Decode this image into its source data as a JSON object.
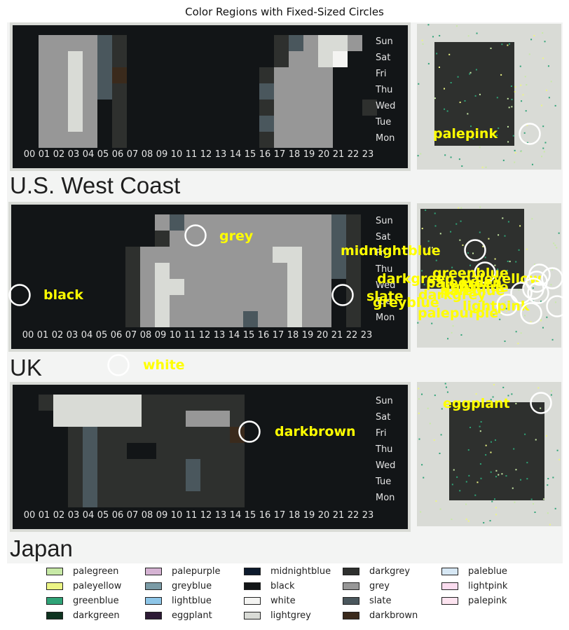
{
  "chart_data": {
    "type": "heatmap",
    "title": "Color Regions with Fixed-Sized Circles",
    "panels": [
      {
        "name": "U.S. West Coast",
        "hours": [
          "00",
          "01",
          "02",
          "03",
          "04",
          "05",
          "06",
          "07",
          "08",
          "09",
          "10",
          "11",
          "12",
          "13",
          "14",
          "15",
          "16",
          "17",
          "18",
          "19",
          "20",
          "21",
          "22",
          "23"
        ],
        "days": [
          "Sun",
          "Sat",
          "Fri",
          "Thu",
          "Wed",
          "Tue",
          "Mon"
        ]
      },
      {
        "name": "UK",
        "hours": [
          "00",
          "01",
          "02",
          "03",
          "04",
          "05",
          "06",
          "07",
          "08",
          "09",
          "10",
          "11",
          "12",
          "13",
          "14",
          "15",
          "16",
          "17",
          "18",
          "19",
          "20",
          "21",
          "22",
          "23"
        ],
        "days": [
          "Sun",
          "Sat",
          "Fri",
          "Thu",
          "Wed",
          "Tue",
          "Mon"
        ]
      },
      {
        "name": "Japan",
        "hours": [
          "00",
          "01",
          "02",
          "03",
          "04",
          "05",
          "06",
          "07",
          "08",
          "09",
          "10",
          "11",
          "12",
          "13",
          "14",
          "15",
          "16",
          "17",
          "18",
          "19",
          "20",
          "21",
          "22",
          "23"
        ],
        "days": [
          "Sun",
          "Sat",
          "Fri",
          "Thu",
          "Wed",
          "Tue",
          "Mon"
        ]
      }
    ],
    "annotations": [
      {
        "label": "palepink"
      },
      {
        "label": "grey"
      },
      {
        "label": "midnightblue"
      },
      {
        "label": "black"
      },
      {
        "label": "greenblue"
      },
      {
        "label": "darkgreen"
      },
      {
        "label": "paleyellow"
      },
      {
        "label": "palegreen"
      },
      {
        "label": "darkgrey"
      },
      {
        "label": "slate"
      },
      {
        "label": "paleblue"
      },
      {
        "label": "lightblue"
      },
      {
        "label": "greyblue"
      },
      {
        "label": "lightpink"
      },
      {
        "label": "palepurple"
      },
      {
        "label": "white"
      },
      {
        "label": "eggplant"
      },
      {
        "label": "darkbrown"
      }
    ],
    "legend": [
      {
        "name": "palegreen",
        "color": "#c7e9a6"
      },
      {
        "name": "paleyellow",
        "color": "#ecf585"
      },
      {
        "name": "greenblue",
        "color": "#2fa377"
      },
      {
        "name": "darkgreen",
        "color": "#0e3320"
      },
      {
        "name": "palepurple",
        "color": "#d5b3d3"
      },
      {
        "name": "greyblue",
        "color": "#7a9ba6"
      },
      {
        "name": "lightblue",
        "color": "#8ec6e8"
      },
      {
        "name": "eggplant",
        "color": "#2d1a35"
      },
      {
        "name": "midnightblue",
        "color": "#0d1a2d"
      },
      {
        "name": "black",
        "color": "#121517"
      },
      {
        "name": "white",
        "color": "#f4f4f2"
      },
      {
        "name": "lightgrey",
        "color": "#d9dbd6"
      },
      {
        "name": "darkgrey",
        "color": "#2e302e"
      },
      {
        "name": "grey",
        "color": "#979797"
      },
      {
        "name": "slate",
        "color": "#4a575d"
      },
      {
        "name": "darkbrown",
        "color": "#3a2a1c"
      },
      {
        "name": "paleblue",
        "color": "#d6e7f4"
      },
      {
        "name": "lightpink",
        "color": "#fbdcef"
      },
      {
        "name": "palepink",
        "color": "#fde4f0"
      }
    ],
    "legend_placement": "bottom",
    "label_color": "#ffff00",
    "circle_color": "#ffffff"
  }
}
